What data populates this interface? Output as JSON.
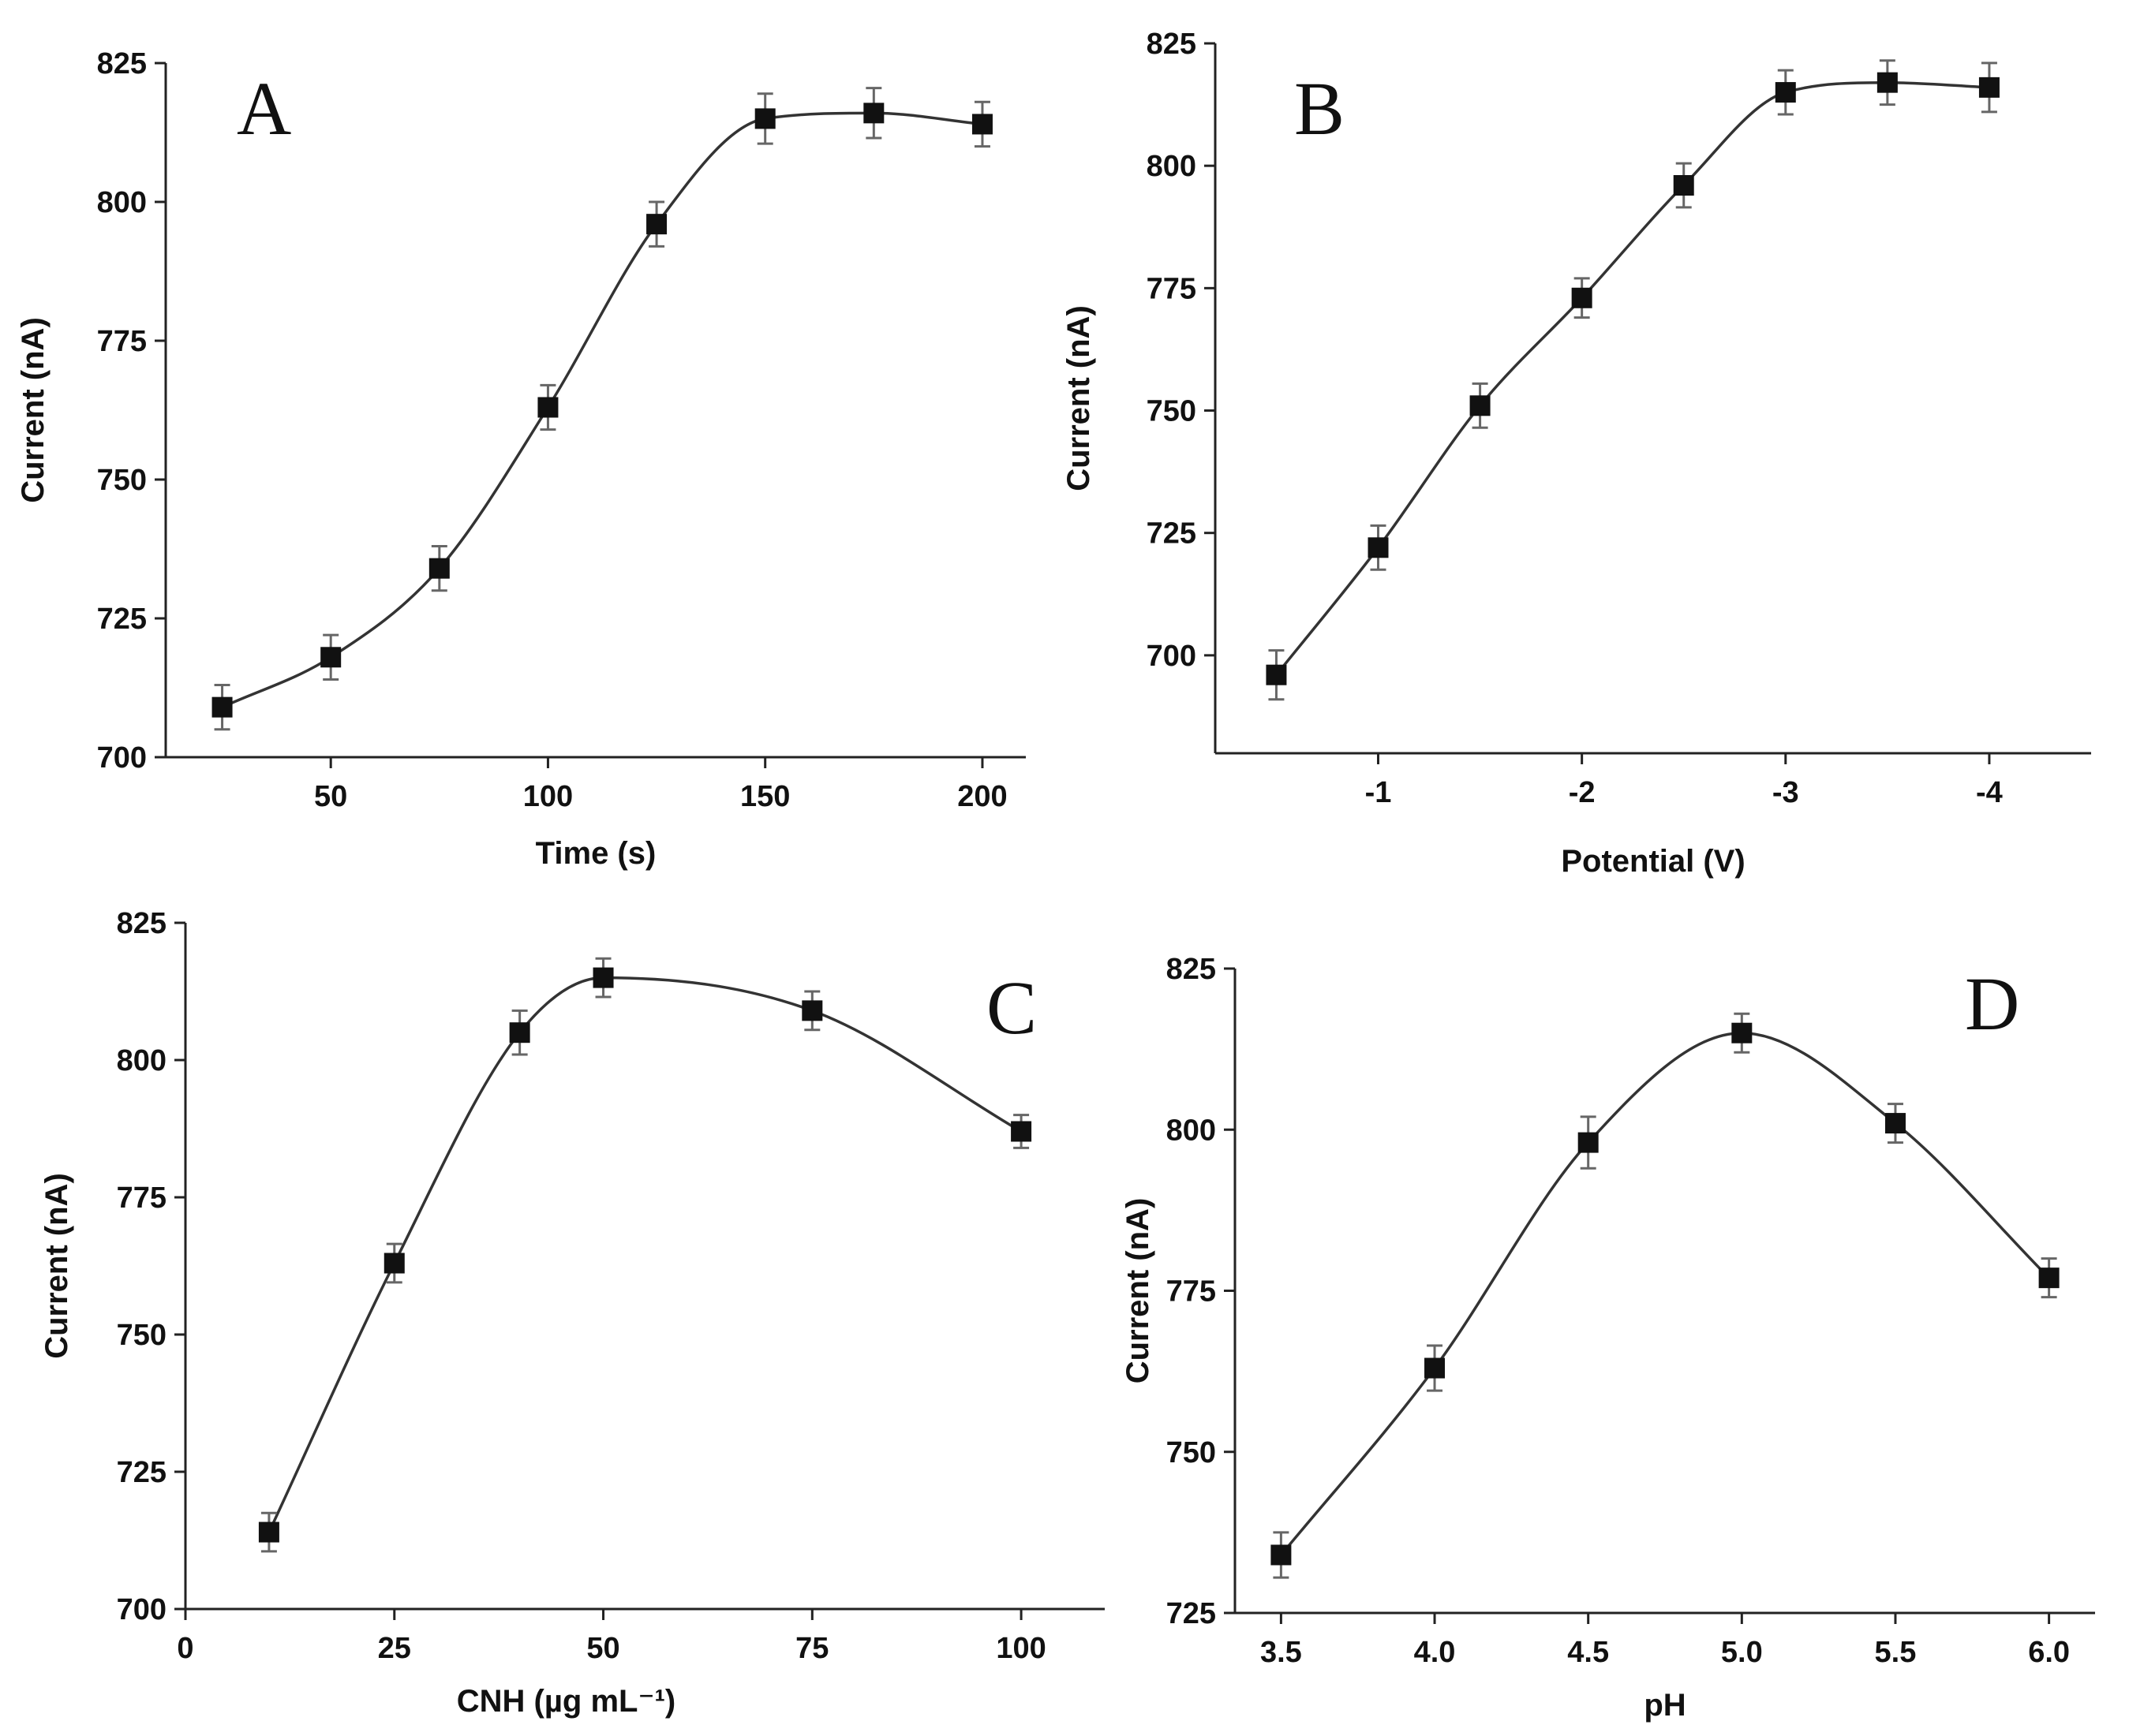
{
  "figure_colors": {
    "marker": "#111111",
    "curve": "#333333",
    "error_bar": "#666666"
  },
  "chart_data": [
    {
      "id": "A",
      "type": "line",
      "panel_label": "A",
      "title": "",
      "xlabel": "Time (s)",
      "ylabel": "Current (nA)",
      "x": [
        25,
        50,
        75,
        100,
        125,
        150,
        175,
        200
      ],
      "values": [
        709,
        718,
        734,
        763,
        796,
        815,
        816,
        814
      ],
      "error": [
        4,
        4,
        4,
        4,
        4,
        4.5,
        4.5,
        4
      ],
      "xlim": [
        12,
        210
      ],
      "ylim": [
        700,
        825
      ],
      "xticks": [
        50,
        100,
        150,
        200
      ],
      "xtick_labels": [
        "50",
        "100",
        "150",
        "200"
      ],
      "yticks": [
        700,
        725,
        750,
        775,
        800,
        825
      ],
      "ytick_labels": [
        "700",
        "725",
        "750",
        "775",
        "800",
        "825"
      ],
      "legend": "none",
      "grid": false
    },
    {
      "id": "B",
      "type": "line",
      "panel_label": "B",
      "title": "",
      "xlabel": "Potential (V)",
      "ylabel": "Current (nA)",
      "x": [
        -0.5,
        -1.0,
        -1.5,
        -2.0,
        -2.5,
        -3.0,
        -3.5,
        -4.0
      ],
      "values": [
        696,
        722,
        751,
        773,
        796,
        815,
        817,
        816
      ],
      "error": [
        5,
        4.5,
        4.5,
        4,
        4.5,
        4.5,
        4.5,
        5
      ],
      "xlim": [
        -0.2,
        -4.5
      ],
      "ylim": [
        680,
        825
      ],
      "xticks": [
        -1,
        -2,
        -3,
        -4
      ],
      "xtick_labels": [
        "-1",
        "-2",
        "-3",
        "-4"
      ],
      "yticks": [
        700,
        725,
        750,
        775,
        800,
        825
      ],
      "ytick_labels": [
        "700",
        "725",
        "750",
        "775",
        "800",
        "825"
      ],
      "legend": "none",
      "grid": false
    },
    {
      "id": "C",
      "type": "line",
      "panel_label": "C",
      "title": "",
      "xlabel": "CNH (µg mL⁻¹)",
      "ylabel": "Current (nA)",
      "x": [
        10,
        25,
        40,
        50,
        75,
        100
      ],
      "values": [
        714,
        763,
        805,
        815,
        809,
        787
      ],
      "error": [
        3.5,
        3.5,
        4,
        3.5,
        3.5,
        3
      ],
      "xlim": [
        0,
        110
      ],
      "ylim": [
        700,
        825
      ],
      "xticks": [
        0,
        25,
        50,
        75,
        100
      ],
      "xtick_labels": [
        "0",
        "25",
        "50",
        "75",
        "100"
      ],
      "yticks": [
        700,
        725,
        750,
        775,
        800,
        825
      ],
      "ytick_labels": [
        "700",
        "725",
        "750",
        "775",
        "800",
        "825"
      ],
      "legend": "none",
      "grid": false
    },
    {
      "id": "D",
      "type": "line",
      "panel_label": "D",
      "title": "",
      "xlabel": "pH",
      "ylabel": "Current (nA)",
      "x": [
        3.5,
        4.0,
        4.5,
        5.0,
        5.5,
        6.0
      ],
      "values": [
        734,
        763,
        798,
        815,
        801,
        777
      ],
      "error": [
        3.5,
        3.5,
        4,
        3,
        3,
        3
      ],
      "xlim": [
        3.35,
        6.15
      ],
      "ylim": [
        725,
        825
      ],
      "xticks": [
        3.5,
        4.0,
        4.5,
        5.0,
        5.5,
        6.0
      ],
      "xtick_labels": [
        "3.5",
        "4.0",
        "4.5",
        "5.0",
        "5.5",
        "6.0"
      ],
      "yticks": [
        725,
        750,
        775,
        800,
        825
      ],
      "ytick_labels": [
        "725",
        "750",
        "775",
        "800",
        "825"
      ],
      "legend": "none",
      "grid": false
    }
  ]
}
